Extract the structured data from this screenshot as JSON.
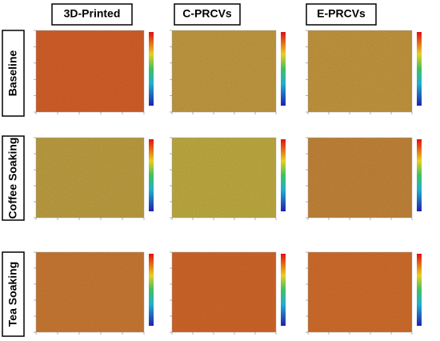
{
  "columns": [
    "3D-Printed",
    "C-PRCVs",
    "E-PRCVs"
  ],
  "rows": [
    "Baseline",
    "Coffee Soaking",
    "Tea Soaking"
  ]
}
